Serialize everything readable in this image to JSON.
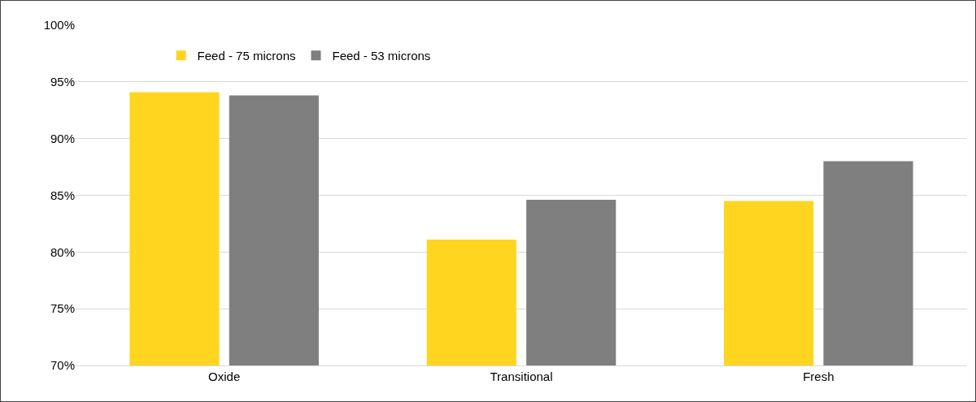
{
  "chart_data": {
    "type": "bar",
    "categories": [
      "Oxide",
      "Transitional",
      "Fresh"
    ],
    "series": [
      {
        "name": "Feed - 75 microns",
        "color": "#ffd520",
        "values": [
          94.1,
          81.1,
          84.5
        ]
      },
      {
        "name": "Feed - 53 microns",
        "color": "#7f7f7f",
        "values": [
          93.8,
          84.6,
          88.0
        ]
      }
    ],
    "ylim": [
      70,
      100
    ],
    "yticks": [
      {
        "value": 70,
        "label": "70%"
      },
      {
        "value": 75,
        "label": "75%"
      },
      {
        "value": 80,
        "label": "80%"
      },
      {
        "value": 85,
        "label": "85%"
      },
      {
        "value": 90,
        "label": "90%"
      },
      {
        "value": 95,
        "label": "95%"
      },
      {
        "value": 100,
        "label": "100%"
      }
    ],
    "grid": "y",
    "legend": "top left"
  }
}
